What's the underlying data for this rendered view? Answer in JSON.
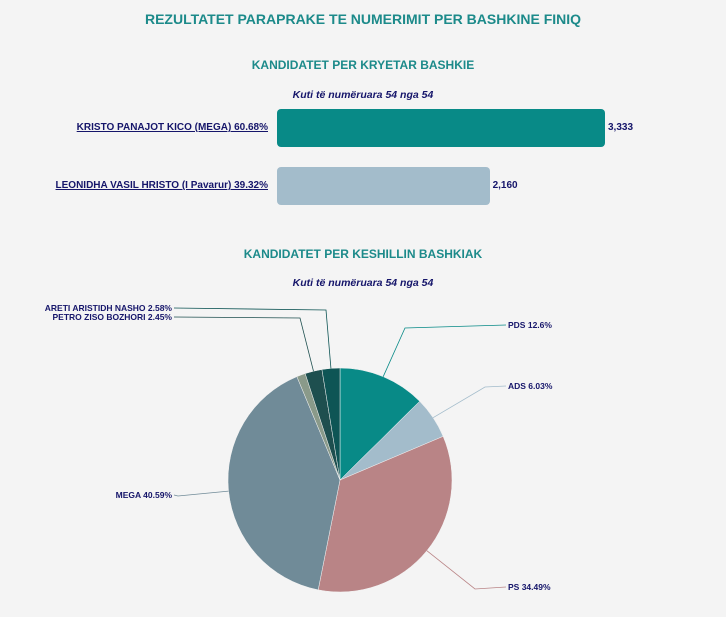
{
  "page": {
    "title": "REZULTATET PARAPRAKE TE NUMERIMIT PER BASHKINE FINIQ"
  },
  "mayor": {
    "title": "KANDIDATET PER KRYETAR BASHKIE",
    "subtitle": "Kuti të numëruara 54 nga 54"
  },
  "council": {
    "title": "KANDIDATET PER KESHILLIN BASHKIAK",
    "subtitle": "Kuti të numëruara 54 nga 54"
  },
  "chart_data": [
    {
      "type": "bar",
      "orientation": "horizontal",
      "categories": [
        "KRISTO PANAJOT KICO (MEGA) 60.68%",
        "LEONIDHA VASIL HRISTO (I Pavarur) 39.32%"
      ],
      "values": [
        3333,
        2160
      ],
      "value_labels": [
        "3,333",
        "2,160"
      ],
      "colors": [
        "#088a87",
        "#a3bccb"
      ],
      "xlim": [
        0,
        3333
      ]
    },
    {
      "type": "pie",
      "slices": [
        {
          "label": "PDS 12.6%",
          "value": 12.6,
          "color": "#088a87"
        },
        {
          "label": "ADS 6.03%",
          "value": 6.03,
          "color": "#a3bccb"
        },
        {
          "label": "PS 34.49%",
          "value": 34.49,
          "color": "#b98486"
        },
        {
          "label": "MEGA 40.59%",
          "value": 40.59,
          "color": "#708b98"
        },
        {
          "label": "",
          "value": 1.26,
          "color": "#8a9a8a"
        },
        {
          "label": "PETRO ZISO BOZHORI 2.45%",
          "value": 2.45,
          "color": "#1e4f4f"
        },
        {
          "label": "ARETI ARISTIDH NASHO 2.58%",
          "value": 2.58,
          "color": "#0e5555"
        }
      ]
    }
  ]
}
